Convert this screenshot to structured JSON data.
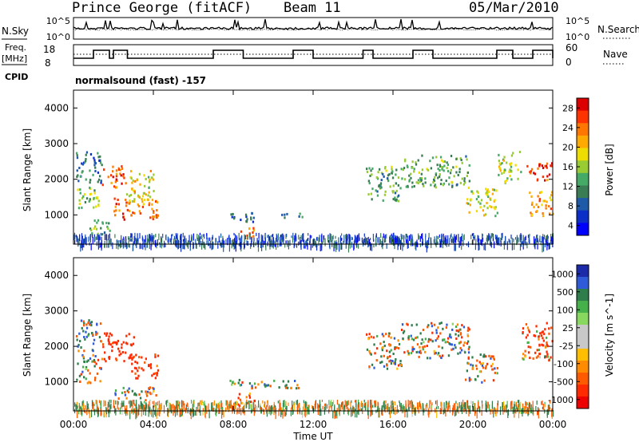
{
  "header": {
    "station": "Prince George (fitACF)",
    "beam": "Beam 11",
    "date": "05/Mar/2010"
  },
  "panels": {
    "noise": {
      "left_label": "N.Sky",
      "right_label": "N.Search",
      "left_ticks": [
        "10^5",
        "10^0"
      ],
      "right_ticks": [
        "10^5",
        "10^0"
      ]
    },
    "freq": {
      "left_label_line1": "Freq.",
      "left_label_line2": "[MHz]",
      "right_label": "Nave",
      "left_ticks": [
        "18",
        "8"
      ],
      "right_ticks": [
        "60",
        "0"
      ]
    },
    "cpid": {
      "label": "CPID",
      "text": "normalsound (fast) -157"
    }
  },
  "colorbars": {
    "power": {
      "label": "Power [dB]",
      "ticks": [
        "28",
        "24",
        "20",
        "16",
        "12",
        "8",
        "4"
      ],
      "colors": [
        "#dd0000",
        "#ff3300",
        "#ff7700",
        "#ffaa00",
        "#eedd00",
        "#99cc33",
        "#44aa66",
        "#3a7d55",
        "#1f5aa8",
        "#0b2ec8",
        "#0000ff"
      ]
    },
    "velocity": {
      "label": "Velocity [m s^-1]",
      "ticks": [
        "1000",
        "500",
        "100",
        "25",
        "-25",
        "-100",
        "-500",
        "-1000"
      ],
      "colors": [
        "#1a2aa8",
        "#2f5ad8",
        "#2e7d4a",
        "#46b04a",
        "#88d860",
        "#c8c8c8",
        "#c8c8c8",
        "#ffbf00",
        "#ff8c00",
        "#ff5a00",
        "#ff2a00",
        "#ee0000"
      ]
    }
  },
  "chart_data": [
    {
      "type": "heatmap",
      "title": "Power",
      "xlabel": "",
      "ylabel": "Slant Range [km]",
      "yticks": [
        "1000",
        "2000",
        "3000",
        "4000"
      ],
      "xlim": [
        0,
        24
      ],
      "ylim": [
        180,
        4500
      ],
      "colorbar_label": "Power [dB]",
      "regions": [
        {
          "t0": 0.1,
          "t1": 1.4,
          "r0": 1900,
          "r1": 2800,
          "value": 8
        },
        {
          "t0": 0.1,
          "t1": 1.4,
          "r0": 1200,
          "r1": 1800,
          "value": 14
        },
        {
          "t0": 1.4,
          "t1": 2.6,
          "r0": 1800,
          "r1": 2400,
          "value": 26
        },
        {
          "t0": 2.0,
          "t1": 4.2,
          "r0": 900,
          "r1": 1500,
          "value": 24
        },
        {
          "t0": 2.6,
          "t1": 4.0,
          "r0": 1400,
          "r1": 2300,
          "value": 18
        },
        {
          "t0": 0.8,
          "t1": 1.8,
          "r0": 400,
          "r1": 900,
          "value": 12
        },
        {
          "t0": 7.7,
          "t1": 9.1,
          "r0": 800,
          "r1": 1100,
          "value": 6
        },
        {
          "t0": 8.3,
          "t1": 9.0,
          "r0": 350,
          "r1": 700,
          "value": 24
        },
        {
          "t0": 10.4,
          "t1": 11.6,
          "r0": 950,
          "r1": 1100,
          "value": 6
        },
        {
          "t0": 14.6,
          "t1": 16.4,
          "r0": 1400,
          "r1": 2400,
          "value": 12
        },
        {
          "t0": 16.4,
          "t1": 19.8,
          "r0": 1800,
          "r1": 2700,
          "value": 12
        },
        {
          "t0": 19.6,
          "t1": 21.2,
          "r0": 1000,
          "r1": 1800,
          "value": 16
        },
        {
          "t0": 21.2,
          "t1": 22.4,
          "r0": 1900,
          "r1": 2800,
          "value": 16
        },
        {
          "t0": 22.6,
          "t1": 24.0,
          "r0": 2000,
          "r1": 2500,
          "value": 27
        },
        {
          "t0": 22.8,
          "t1": 24.0,
          "r0": 1000,
          "r1": 1700,
          "value": 22
        }
      ]
    },
    {
      "type": "heatmap",
      "title": "Velocity",
      "xlabel": "Time UT",
      "ylabel": "Slant Range [km]",
      "xticks": [
        "00:00",
        "04:00",
        "08:00",
        "12:00",
        "16:00",
        "20:00",
        "00:00"
      ],
      "yticks": [
        "1000",
        "2000",
        "3000",
        "4000"
      ],
      "xlim": [
        0,
        24
      ],
      "ylim": [
        180,
        4500
      ],
      "colorbar_label": "Velocity [m s^-1]",
      "regions": [
        {
          "t0": 0.1,
          "t1": 1.4,
          "r0": 1900,
          "r1": 2800,
          "value": 50
        },
        {
          "t0": 0.1,
          "t1": 1.4,
          "r0": 1000,
          "r1": 1800,
          "value": 0
        },
        {
          "t0": 1.4,
          "t1": 3.0,
          "r0": 1600,
          "r1": 2400,
          "value": -300
        },
        {
          "t0": 2.8,
          "t1": 4.2,
          "r0": 1100,
          "r1": 1800,
          "value": -200
        },
        {
          "t0": 2.0,
          "t1": 4.2,
          "r0": 500,
          "r1": 900,
          "value": 60
        },
        {
          "t0": 7.7,
          "t1": 11.5,
          "r0": 850,
          "r1": 1100,
          "value": 0
        },
        {
          "t0": 8.2,
          "t1": 9.2,
          "r0": 350,
          "r1": 700,
          "value": -200
        },
        {
          "t0": 14.6,
          "t1": 16.4,
          "r0": 1400,
          "r1": 2400,
          "value": 0
        },
        {
          "t0": 16.4,
          "t1": 19.8,
          "r0": 1700,
          "r1": 2700,
          "value": 0
        },
        {
          "t0": 19.6,
          "t1": 21.2,
          "r0": 1000,
          "r1": 1800,
          "value": 0
        },
        {
          "t0": 22.4,
          "t1": 24.0,
          "r0": 1600,
          "r1": 2700,
          "value": -150
        }
      ]
    }
  ]
}
